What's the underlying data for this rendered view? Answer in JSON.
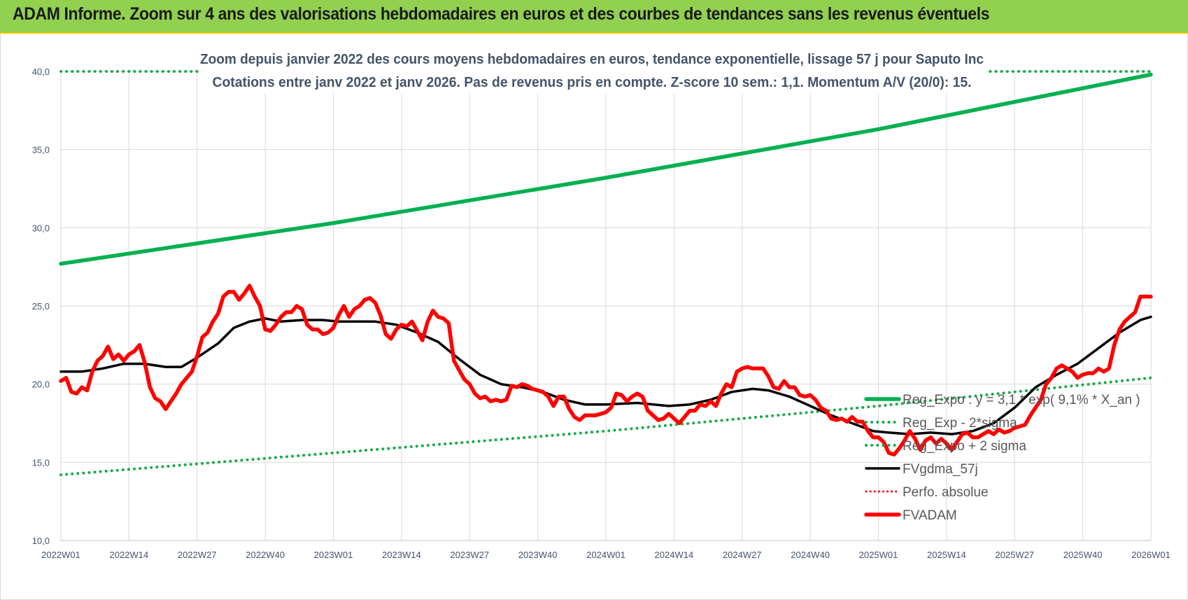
{
  "banner": {
    "title": "ADAM Informe. Zoom sur 4 ans des valorisations hebdomadaires en euros et des courbes de tendances sans les revenus éventuels"
  },
  "colors": {
    "banner_bg": "#92d050",
    "trend": "#00b050",
    "trend_dotted": "#1aaa4a",
    "smooth": "#000000",
    "price": "#ff0000",
    "perfo": "#ff0000",
    "grid": "#d9d9d9"
  },
  "chart_data": {
    "type": "line",
    "subtitle_line1": "Zoom depuis janvier 2022 des cours moyens hebdomadaires en euros, tendance exponentielle, lissage 57 j pour Saputo Inc",
    "subtitle_line2": "Cotations entre janv 2022 et janv 2026. Pas de revenus pris en compte. Z-score 10 sem.: 1,1. Momentum A/V (20/0): 15.",
    "ylim": [
      10,
      40
    ],
    "yticks": [
      "10,0",
      "15,0",
      "20,0",
      "25,0",
      "30,0",
      "35,0",
      "40,0"
    ],
    "ytick_values": [
      10,
      15,
      20,
      25,
      30,
      35,
      40
    ],
    "xticks": [
      "2022W01",
      "2022W14",
      "2022W27",
      "2022W40",
      "2023W01",
      "2023W14",
      "2023W27",
      "2023W40",
      "2024W01",
      "2024W14",
      "2024W27",
      "2024W40",
      "2025W01",
      "2025W14",
      "2025W27",
      "2025W40",
      "2026W01"
    ],
    "xtick_weeks": [
      0,
      13,
      26,
      39,
      52,
      65,
      78,
      91,
      104,
      117,
      130,
      143,
      156,
      169,
      182,
      195,
      208
    ],
    "legend": [
      {
        "label": "Reg_Expo : y = 3,1 * exp( 9,1% *  X_an )",
        "style": "solid-green"
      },
      {
        "label": "Reg_Exp - 2*sigma",
        "style": "dotted-green"
      },
      {
        "label": "Reg_Expo + 2 sigma",
        "style": "dotted-green"
      },
      {
        "label": "FVgdma_57j",
        "style": "solid-black"
      },
      {
        "label": "Perfo. absolue",
        "style": "dotted-red"
      },
      {
        "label": "FVADAM",
        "style": "solid-red"
      }
    ],
    "series": [
      {
        "name": "Reg_Expo",
        "points": [
          [
            0,
            27.7
          ],
          [
            52,
            30.3
          ],
          [
            104,
            33.2
          ],
          [
            156,
            36.3
          ],
          [
            208,
            39.8
          ]
        ]
      },
      {
        "name": "Reg_Exp - 2*sigma",
        "points": [
          [
            0,
            14.2
          ],
          [
            52,
            15.6
          ],
          [
            104,
            17.0
          ],
          [
            156,
            18.6
          ],
          [
            208,
            20.4
          ]
        ]
      },
      {
        "name": "Reg_Expo + 2 sigma",
        "points": [
          [
            0,
            40.0
          ],
          [
            208,
            40.0
          ]
        ]
      },
      {
        "name": "FVgdma_57j",
        "points": [
          [
            0,
            20.8
          ],
          [
            4,
            20.8
          ],
          [
            8,
            21.0
          ],
          [
            12,
            21.3
          ],
          [
            16,
            21.3
          ],
          [
            20,
            21.1
          ],
          [
            23,
            21.1
          ],
          [
            26,
            21.7
          ],
          [
            30,
            22.6
          ],
          [
            33,
            23.6
          ],
          [
            36,
            24.0
          ],
          [
            39,
            24.2
          ],
          [
            42,
            24.0
          ],
          [
            46,
            24.1
          ],
          [
            50,
            24.1
          ],
          [
            53,
            24.0
          ],
          [
            56,
            24.0
          ],
          [
            60,
            24.0
          ],
          [
            64,
            23.8
          ],
          [
            68,
            23.3
          ],
          [
            72,
            22.7
          ],
          [
            76,
            21.6
          ],
          [
            80,
            20.6
          ],
          [
            84,
            20.0
          ],
          [
            88,
            19.8
          ],
          [
            92,
            19.5
          ],
          [
            96,
            19.0
          ],
          [
            100,
            18.7
          ],
          [
            104,
            18.7
          ],
          [
            110,
            18.8
          ],
          [
            116,
            18.6
          ],
          [
            120,
            18.7
          ],
          [
            124,
            19.0
          ],
          [
            128,
            19.5
          ],
          [
            132,
            19.7
          ],
          [
            135,
            19.6
          ],
          [
            139,
            19.2
          ],
          [
            143,
            18.6
          ],
          [
            147,
            18.0
          ],
          [
            151,
            17.5
          ],
          [
            155,
            17.0
          ],
          [
            158,
            16.9
          ],
          [
            162,
            16.8
          ],
          [
            166,
            16.9
          ],
          [
            170,
            16.8
          ],
          [
            174,
            17.0
          ],
          [
            178,
            17.5
          ],
          [
            182,
            18.5
          ],
          [
            186,
            19.8
          ],
          [
            190,
            20.6
          ],
          [
            194,
            21.3
          ],
          [
            198,
            22.3
          ],
          [
            202,
            23.3
          ],
          [
            206,
            24.1
          ],
          [
            208,
            24.3
          ]
        ]
      },
      {
        "name": "FVADAM",
        "points": [
          [
            0,
            20.2
          ],
          [
            1,
            20.4
          ],
          [
            2,
            19.5
          ],
          [
            3,
            19.4
          ],
          [
            4,
            19.8
          ],
          [
            5,
            19.6
          ],
          [
            6,
            20.8
          ],
          [
            7,
            21.5
          ],
          [
            8,
            21.8
          ],
          [
            9,
            22.4
          ],
          [
            10,
            21.6
          ],
          [
            11,
            21.9
          ],
          [
            12,
            21.5
          ],
          [
            13,
            21.9
          ],
          [
            14,
            22.1
          ],
          [
            15,
            22.5
          ],
          [
            16,
            21.4
          ],
          [
            17,
            19.8
          ],
          [
            18,
            19.1
          ],
          [
            19,
            18.9
          ],
          [
            20,
            18.4
          ],
          [
            21,
            18.9
          ],
          [
            22,
            19.4
          ],
          [
            23,
            20.0
          ],
          [
            24,
            20.4
          ],
          [
            25,
            20.8
          ],
          [
            26,
            21.8
          ],
          [
            27,
            23.0
          ],
          [
            28,
            23.3
          ],
          [
            29,
            24.0
          ],
          [
            30,
            24.5
          ],
          [
            31,
            25.6
          ],
          [
            32,
            25.9
          ],
          [
            33,
            25.9
          ],
          [
            34,
            25.4
          ],
          [
            35,
            25.8
          ],
          [
            36,
            26.3
          ],
          [
            37,
            25.6
          ],
          [
            38,
            25.0
          ],
          [
            39,
            23.5
          ],
          [
            40,
            23.4
          ],
          [
            41,
            23.8
          ],
          [
            42,
            24.3
          ],
          [
            43,
            24.6
          ],
          [
            44,
            24.6
          ],
          [
            45,
            25.0
          ],
          [
            46,
            24.8
          ],
          [
            47,
            23.8
          ],
          [
            48,
            23.5
          ],
          [
            49,
            23.5
          ],
          [
            50,
            23.2
          ],
          [
            51,
            23.3
          ],
          [
            52,
            23.6
          ],
          [
            53,
            24.4
          ],
          [
            54,
            25.0
          ],
          [
            55,
            24.3
          ],
          [
            56,
            24.8
          ],
          [
            57,
            25.0
          ],
          [
            58,
            25.4
          ],
          [
            59,
            25.5
          ],
          [
            60,
            25.2
          ],
          [
            61,
            24.4
          ],
          [
            62,
            23.2
          ],
          [
            63,
            22.9
          ],
          [
            64,
            23.5
          ],
          [
            65,
            23.8
          ],
          [
            66,
            23.7
          ],
          [
            67,
            24.0
          ],
          [
            68,
            23.4
          ],
          [
            69,
            22.8
          ],
          [
            70,
            24.0
          ],
          [
            71,
            24.7
          ],
          [
            72,
            24.3
          ],
          [
            73,
            24.2
          ],
          [
            74,
            23.9
          ],
          [
            75,
            21.5
          ],
          [
            76,
            20.9
          ],
          [
            77,
            20.3
          ],
          [
            78,
            20.0
          ],
          [
            79,
            19.4
          ],
          [
            80,
            19.1
          ],
          [
            81,
            19.2
          ],
          [
            82,
            18.9
          ],
          [
            83,
            19.0
          ],
          [
            84,
            18.9
          ],
          [
            85,
            19.0
          ],
          [
            86,
            19.9
          ],
          [
            87,
            19.8
          ],
          [
            88,
            20.0
          ],
          [
            89,
            19.9
          ],
          [
            90,
            19.7
          ],
          [
            91,
            19.6
          ],
          [
            92,
            19.5
          ],
          [
            93,
            19.2
          ],
          [
            94,
            18.6
          ],
          [
            95,
            19.2
          ],
          [
            96,
            19.2
          ],
          [
            97,
            18.4
          ],
          [
            98,
            17.9
          ],
          [
            99,
            17.7
          ],
          [
            100,
            18.0
          ],
          [
            101,
            18.0
          ],
          [
            102,
            18.0
          ],
          [
            103,
            18.1
          ],
          [
            104,
            18.2
          ],
          [
            105,
            18.5
          ],
          [
            106,
            19.4
          ],
          [
            107,
            19.3
          ],
          [
            108,
            18.9
          ],
          [
            109,
            19.2
          ],
          [
            110,
            19.4
          ],
          [
            111,
            19.2
          ],
          [
            112,
            18.3
          ],
          [
            113,
            18.0
          ],
          [
            114,
            17.7
          ],
          [
            115,
            17.8
          ],
          [
            116,
            18.1
          ],
          [
            117,
            17.8
          ],
          [
            118,
            17.5
          ],
          [
            119,
            17.9
          ],
          [
            120,
            18.3
          ],
          [
            121,
            18.3
          ],
          [
            122,
            18.7
          ],
          [
            123,
            18.6
          ],
          [
            124,
            18.9
          ],
          [
            125,
            18.6
          ],
          [
            126,
            19.4
          ],
          [
            127,
            20.0
          ],
          [
            128,
            19.8
          ],
          [
            129,
            20.8
          ],
          [
            130,
            21.0
          ],
          [
            131,
            21.1
          ],
          [
            132,
            21.0
          ],
          [
            133,
            21.0
          ],
          [
            134,
            21.0
          ],
          [
            135,
            20.5
          ],
          [
            136,
            19.8
          ],
          [
            137,
            19.7
          ],
          [
            138,
            20.2
          ],
          [
            139,
            19.8
          ],
          [
            140,
            19.8
          ],
          [
            141,
            19.3
          ],
          [
            142,
            19.2
          ],
          [
            143,
            19.3
          ],
          [
            144,
            19.0
          ],
          [
            145,
            18.5
          ],
          [
            146,
            18.3
          ],
          [
            147,
            17.8
          ],
          [
            148,
            17.7
          ],
          [
            149,
            17.8
          ],
          [
            150,
            17.6
          ],
          [
            151,
            17.9
          ],
          [
            152,
            17.6
          ],
          [
            153,
            17.6
          ],
          [
            154,
            17.0
          ],
          [
            155,
            16.6
          ],
          [
            156,
            16.6
          ],
          [
            157,
            16.3
          ],
          [
            158,
            15.6
          ],
          [
            159,
            15.5
          ],
          [
            160,
            15.9
          ],
          [
            161,
            16.4
          ],
          [
            162,
            17.0
          ],
          [
            163,
            16.5
          ],
          [
            164,
            15.8
          ],
          [
            165,
            16.4
          ],
          [
            166,
            16.6
          ],
          [
            167,
            16.2
          ],
          [
            168,
            16.5
          ],
          [
            169,
            16.2
          ],
          [
            170,
            15.8
          ],
          [
            171,
            16.3
          ],
          [
            172,
            16.8
          ],
          [
            173,
            16.9
          ],
          [
            174,
            16.6
          ],
          [
            175,
            16.6
          ],
          [
            176,
            16.8
          ],
          [
            177,
            17.0
          ],
          [
            178,
            16.8
          ],
          [
            179,
            17.1
          ],
          [
            180,
            16.9
          ],
          [
            181,
            17.0
          ],
          [
            182,
            17.2
          ],
          [
            183,
            17.3
          ],
          [
            184,
            17.4
          ],
          [
            185,
            18.0
          ],
          [
            186,
            18.5
          ],
          [
            187,
            19.0
          ],
          [
            188,
            20.0
          ],
          [
            189,
            20.4
          ],
          [
            190,
            21.0
          ],
          [
            191,
            21.2
          ],
          [
            192,
            21.0
          ],
          [
            193,
            20.8
          ],
          [
            194,
            20.4
          ],
          [
            195,
            20.6
          ],
          [
            196,
            20.7
          ],
          [
            197,
            20.7
          ],
          [
            198,
            21.0
          ],
          [
            199,
            20.8
          ],
          [
            200,
            21.0
          ],
          [
            201,
            22.5
          ],
          [
            202,
            23.5
          ],
          [
            203,
            24.0
          ],
          [
            204,
            24.3
          ],
          [
            205,
            24.6
          ],
          [
            206,
            25.6
          ],
          [
            207,
            25.6
          ],
          [
            208,
            25.6
          ]
        ]
      }
    ]
  }
}
